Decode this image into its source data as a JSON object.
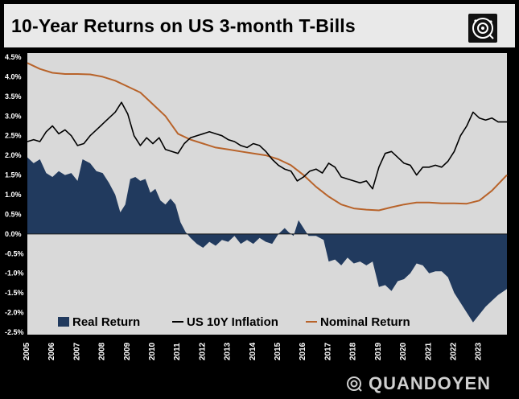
{
  "header": {
    "title": "10-Year Returns on US 3-month T-Bills",
    "logo_icon": "quandoyen-circle-logo-icon"
  },
  "brand": {
    "name": "QUANDOYEN",
    "icon": "quandoyen-circle-logo-icon"
  },
  "colors": {
    "real_return": "#213a5e",
    "inflation": "#000000",
    "nominal": "#b8632a",
    "plot_bg": "#d9d9d9"
  },
  "chart_data": {
    "type": "line",
    "title": "10-Year Returns on US 3-month T-Bills",
    "xlabel": "",
    "ylabel": "",
    "xlim": [
      2005,
      2024.1
    ],
    "ylim": [
      -2.5,
      4.5
    ],
    "y_ticks": [
      "4.5%",
      "4.0%",
      "3.5%",
      "3.0%",
      "2.5%",
      "2.0%",
      "1.5%",
      "1.0%",
      "0.5%",
      "0.0%",
      "-0.5%",
      "-1.0%",
      "-1.5%",
      "-2.0%",
      "-2.5%"
    ],
    "x_ticks": [
      "2005",
      "2006",
      "2007",
      "2008",
      "2009",
      "2010",
      "2011",
      "2012",
      "2013",
      "2014",
      "2015",
      "2016",
      "2017",
      "2018",
      "2019",
      "2020",
      "2021",
      "2022",
      "2023"
    ],
    "legend_position": "bottom",
    "grid": false,
    "series": [
      {
        "name": "Real Return",
        "kind": "area",
        "points": [
          [
            2005,
            1.95
          ],
          [
            2005.25,
            1.8
          ],
          [
            2005.5,
            1.9
          ],
          [
            2005.75,
            1.55
          ],
          [
            2006,
            1.45
          ],
          [
            2006.25,
            1.6
          ],
          [
            2006.5,
            1.5
          ],
          [
            2006.75,
            1.55
          ],
          [
            2007,
            1.35
          ],
          [
            2007.2,
            1.9
          ],
          [
            2007.5,
            1.8
          ],
          [
            2007.75,
            1.6
          ],
          [
            2008,
            1.55
          ],
          [
            2008.25,
            1.3
          ],
          [
            2008.5,
            1.0
          ],
          [
            2008.7,
            0.55
          ],
          [
            2008.9,
            0.75
          ],
          [
            2009.1,
            1.4
          ],
          [
            2009.3,
            1.45
          ],
          [
            2009.5,
            1.35
          ],
          [
            2009.7,
            1.4
          ],
          [
            2009.9,
            1.05
          ],
          [
            2010.1,
            1.15
          ],
          [
            2010.3,
            0.85
          ],
          [
            2010.5,
            0.75
          ],
          [
            2010.7,
            0.9
          ],
          [
            2010.9,
            0.75
          ],
          [
            2011.1,
            0.3
          ],
          [
            2011.3,
            0.05
          ],
          [
            2011.5,
            -0.1
          ],
          [
            2011.75,
            -0.25
          ],
          [
            2012,
            -0.35
          ],
          [
            2012.25,
            -0.2
          ],
          [
            2012.5,
            -0.3
          ],
          [
            2012.75,
            -0.15
          ],
          [
            2013,
            -0.2
          ],
          [
            2013.25,
            -0.05
          ],
          [
            2013.5,
            -0.25
          ],
          [
            2013.75,
            -0.15
          ],
          [
            2014,
            -0.25
          ],
          [
            2014.25,
            -0.1
          ],
          [
            2014.5,
            -0.2
          ],
          [
            2014.75,
            -0.25
          ],
          [
            2015,
            0.0
          ],
          [
            2015.25,
            0.15
          ],
          [
            2015.4,
            0.05
          ],
          [
            2015.6,
            -0.05
          ],
          [
            2015.8,
            0.35
          ],
          [
            2016,
            0.15
          ],
          [
            2016.2,
            -0.05
          ],
          [
            2016.5,
            -0.05
          ],
          [
            2016.8,
            -0.15
          ],
          [
            2017,
            -0.7
          ],
          [
            2017.25,
            -0.65
          ],
          [
            2017.5,
            -0.8
          ],
          [
            2017.75,
            -0.6
          ],
          [
            2018,
            -0.75
          ],
          [
            2018.25,
            -0.7
          ],
          [
            2018.5,
            -0.8
          ],
          [
            2018.75,
            -0.7
          ],
          [
            2019,
            -1.35
          ],
          [
            2019.25,
            -1.3
          ],
          [
            2019.5,
            -1.45
          ],
          [
            2019.75,
            -1.2
          ],
          [
            2020,
            -1.15
          ],
          [
            2020.25,
            -1.0
          ],
          [
            2020.5,
            -0.75
          ],
          [
            2020.75,
            -0.8
          ],
          [
            2021,
            -1.0
          ],
          [
            2021.25,
            -0.95
          ],
          [
            2021.5,
            -0.95
          ],
          [
            2021.75,
            -1.1
          ],
          [
            2022,
            -1.5
          ],
          [
            2022.25,
            -1.75
          ],
          [
            2022.5,
            -2.0
          ],
          [
            2022.75,
            -2.25
          ],
          [
            2023,
            -2.05
          ],
          [
            2023.25,
            -1.85
          ],
          [
            2023.5,
            -1.7
          ],
          [
            2023.75,
            -1.55
          ],
          [
            2024.1,
            -1.4
          ]
        ]
      },
      {
        "name": "US 10Y Inflation",
        "kind": "line",
        "points": [
          [
            2005,
            2.35
          ],
          [
            2005.25,
            2.4
          ],
          [
            2005.5,
            2.35
          ],
          [
            2005.75,
            2.6
          ],
          [
            2006,
            2.75
          ],
          [
            2006.25,
            2.55
          ],
          [
            2006.5,
            2.65
          ],
          [
            2006.75,
            2.5
          ],
          [
            2007,
            2.25
          ],
          [
            2007.25,
            2.3
          ],
          [
            2007.5,
            2.5
          ],
          [
            2007.75,
            2.65
          ],
          [
            2008,
            2.8
          ],
          [
            2008.25,
            2.95
          ],
          [
            2008.5,
            3.1
          ],
          [
            2008.75,
            3.35
          ],
          [
            2009,
            3.05
          ],
          [
            2009.25,
            2.5
          ],
          [
            2009.5,
            2.25
          ],
          [
            2009.75,
            2.45
          ],
          [
            2010,
            2.3
          ],
          [
            2010.25,
            2.45
          ],
          [
            2010.5,
            2.15
          ],
          [
            2010.75,
            2.1
          ],
          [
            2011,
            2.05
          ],
          [
            2011.25,
            2.3
          ],
          [
            2011.5,
            2.45
          ],
          [
            2011.75,
            2.5
          ],
          [
            2012,
            2.55
          ],
          [
            2012.25,
            2.6
          ],
          [
            2012.5,
            2.55
          ],
          [
            2012.75,
            2.5
          ],
          [
            2013,
            2.4
          ],
          [
            2013.25,
            2.35
          ],
          [
            2013.5,
            2.25
          ],
          [
            2013.75,
            2.2
          ],
          [
            2014,
            2.3
          ],
          [
            2014.25,
            2.25
          ],
          [
            2014.5,
            2.1
          ],
          [
            2014.75,
            1.9
          ],
          [
            2015,
            1.75
          ],
          [
            2015.25,
            1.65
          ],
          [
            2015.5,
            1.6
          ],
          [
            2015.75,
            1.35
          ],
          [
            2016,
            1.45
          ],
          [
            2016.25,
            1.6
          ],
          [
            2016.5,
            1.65
          ],
          [
            2016.75,
            1.55
          ],
          [
            2017,
            1.8
          ],
          [
            2017.25,
            1.7
          ],
          [
            2017.5,
            1.45
          ],
          [
            2017.75,
            1.4
          ],
          [
            2018,
            1.35
          ],
          [
            2018.25,
            1.3
          ],
          [
            2018.5,
            1.35
          ],
          [
            2018.75,
            1.15
          ],
          [
            2019,
            1.7
          ],
          [
            2019.25,
            2.05
          ],
          [
            2019.5,
            2.1
          ],
          [
            2019.75,
            1.95
          ],
          [
            2020,
            1.8
          ],
          [
            2020.25,
            1.75
          ],
          [
            2020.5,
            1.5
          ],
          [
            2020.75,
            1.7
          ],
          [
            2021,
            1.7
          ],
          [
            2021.25,
            1.75
          ],
          [
            2021.5,
            1.7
          ],
          [
            2021.75,
            1.85
          ],
          [
            2022,
            2.1
          ],
          [
            2022.25,
            2.5
          ],
          [
            2022.5,
            2.75
          ],
          [
            2022.75,
            3.1
          ],
          [
            2023,
            2.95
          ],
          [
            2023.25,
            2.9
          ],
          [
            2023.5,
            2.95
          ],
          [
            2023.75,
            2.85
          ],
          [
            2024.1,
            2.85
          ]
        ]
      },
      {
        "name": "Nominal Return",
        "kind": "line",
        "points": [
          [
            2005,
            4.35
          ],
          [
            2005.5,
            4.2
          ],
          [
            2006,
            4.1
          ],
          [
            2006.5,
            4.07
          ],
          [
            2007,
            4.07
          ],
          [
            2007.5,
            4.06
          ],
          [
            2008,
            4.0
          ],
          [
            2008.5,
            3.9
          ],
          [
            2009,
            3.75
          ],
          [
            2009.5,
            3.6
          ],
          [
            2010,
            3.3
          ],
          [
            2010.5,
            3.0
          ],
          [
            2011,
            2.55
          ],
          [
            2011.5,
            2.4
          ],
          [
            2012,
            2.3
          ],
          [
            2012.5,
            2.2
          ],
          [
            2013,
            2.15
          ],
          [
            2013.5,
            2.1
          ],
          [
            2014,
            2.05
          ],
          [
            2014.5,
            2.0
          ],
          [
            2015,
            1.9
          ],
          [
            2015.5,
            1.75
          ],
          [
            2016,
            1.5
          ],
          [
            2016.5,
            1.2
          ],
          [
            2017,
            0.95
          ],
          [
            2017.5,
            0.75
          ],
          [
            2018,
            0.65
          ],
          [
            2018.5,
            0.62
          ],
          [
            2019,
            0.6
          ],
          [
            2019.5,
            0.68
          ],
          [
            2020,
            0.75
          ],
          [
            2020.5,
            0.8
          ],
          [
            2021,
            0.8
          ],
          [
            2021.5,
            0.78
          ],
          [
            2022,
            0.78
          ],
          [
            2022.5,
            0.77
          ],
          [
            2023,
            0.85
          ],
          [
            2023.5,
            1.1
          ],
          [
            2024.1,
            1.5
          ]
        ]
      }
    ]
  }
}
